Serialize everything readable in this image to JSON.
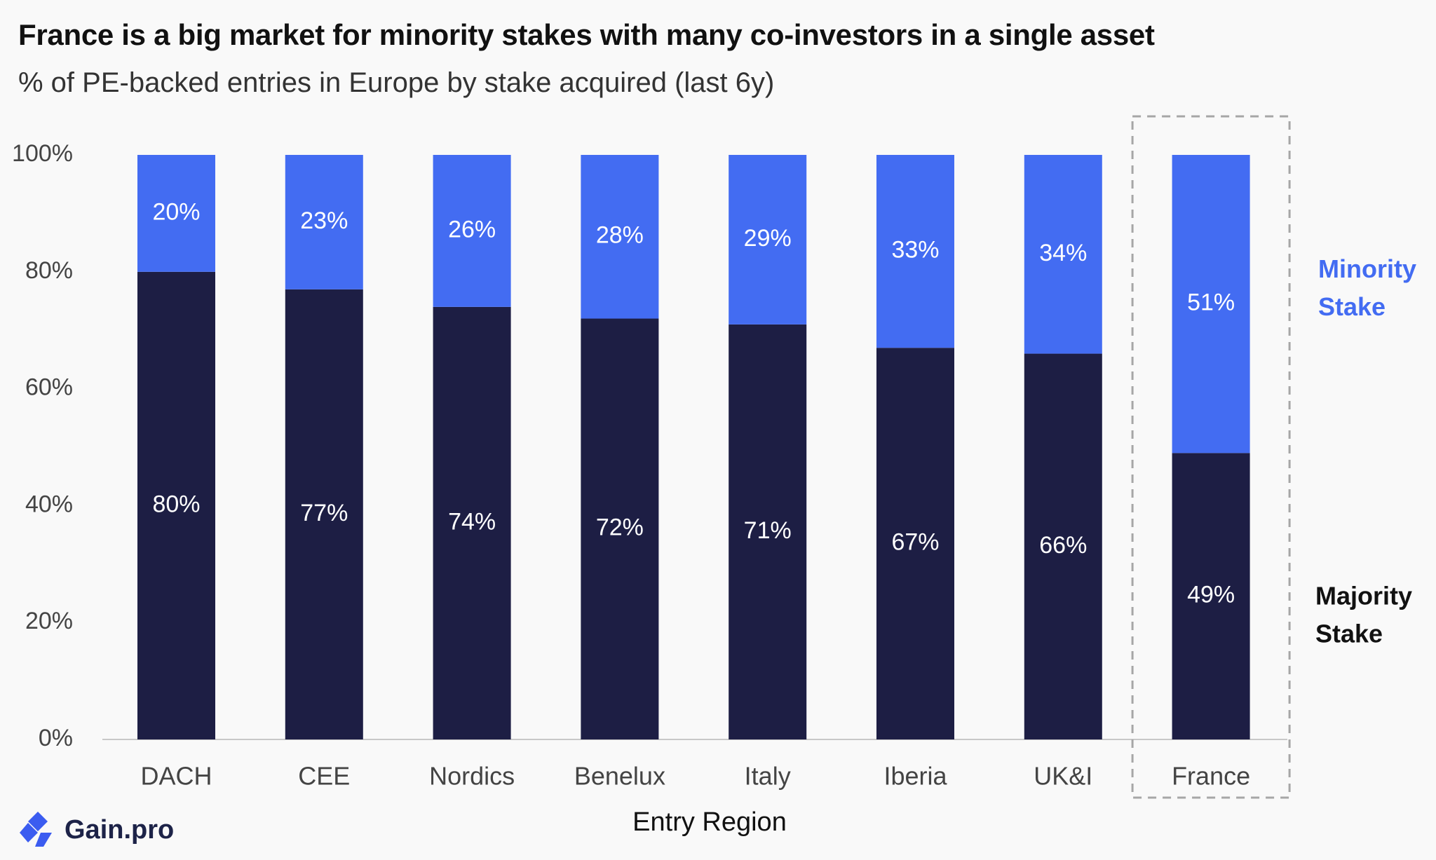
{
  "title": "France is a big market for minority stakes with many co-investors in a single asset",
  "subtitle": "% of PE-backed entries in Europe by stake acquired (last 6y)",
  "brand": "Gain.pro",
  "colors": {
    "majority": "#1d1e44",
    "minority": "#436cf2",
    "axis": "#c8c8c8",
    "highlight_box": "#a6a6a6"
  },
  "chart_data": {
    "type": "bar",
    "stacked": true,
    "categories": [
      "DACH",
      "CEE",
      "Nordics",
      "Benelux",
      "Italy",
      "Iberia",
      "UK&I",
      "France"
    ],
    "series": [
      {
        "name": "Majority Stake",
        "values": [
          80,
          77,
          74,
          72,
          71,
          67,
          66,
          49
        ],
        "labels": [
          "80%",
          "77%",
          "74%",
          "72%",
          "71%",
          "67%",
          "66%",
          "49%"
        ]
      },
      {
        "name": "Minority Stake",
        "values": [
          20,
          23,
          26,
          28,
          29,
          33,
          34,
          51
        ],
        "labels": [
          "20%",
          "23%",
          "26%",
          "28%",
          "29%",
          "33%",
          "34%",
          "51%"
        ]
      }
    ],
    "legend_lines": {
      "Majority Stake": [
        "Majority",
        "Stake"
      ],
      "Minority Stake": [
        "Minority",
        "Stake"
      ]
    },
    "highlighted_category": "France",
    "xlabel": "Entry Region",
    "ylabel": "",
    "ylim": [
      0,
      100
    ],
    "yticks": [
      "0%",
      "20%",
      "40%",
      "60%",
      "80%",
      "100%"
    ],
    "legend_position": "right",
    "grid": false
  }
}
